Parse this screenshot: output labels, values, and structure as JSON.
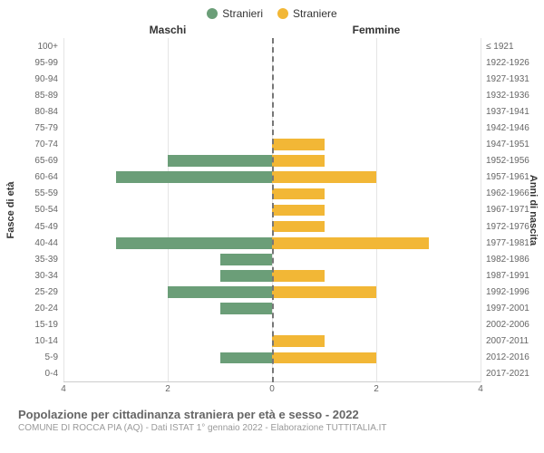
{
  "legend": {
    "series": [
      {
        "label": "Stranieri",
        "color": "#6b9e78"
      },
      {
        "label": "Straniere",
        "color": "#f2b736"
      }
    ]
  },
  "column_headers": {
    "left": "Maschi",
    "right": "Femmine"
  },
  "axis_titles": {
    "left": "Fasce di età",
    "right": "Anni di nascita"
  },
  "chart": {
    "type": "population-pyramid",
    "x_max": 4,
    "x_ticks": [
      4,
      2,
      0,
      2,
      4
    ],
    "grid_color": "#e5e5e5",
    "background_color": "#ffffff",
    "center_axis_color": "#777777",
    "male_color": "#6b9e78",
    "female_color": "#f2b736",
    "bar_height_pct": 70,
    "rows": [
      {
        "age": "100+",
        "birth": "≤ 1921",
        "m": 0,
        "f": 0
      },
      {
        "age": "95-99",
        "birth": "1922-1926",
        "m": 0,
        "f": 0
      },
      {
        "age": "90-94",
        "birth": "1927-1931",
        "m": 0,
        "f": 0
      },
      {
        "age": "85-89",
        "birth": "1932-1936",
        "m": 0,
        "f": 0
      },
      {
        "age": "80-84",
        "birth": "1937-1941",
        "m": 0,
        "f": 0
      },
      {
        "age": "75-79",
        "birth": "1942-1946",
        "m": 0,
        "f": 0
      },
      {
        "age": "70-74",
        "birth": "1947-1951",
        "m": 0,
        "f": 1
      },
      {
        "age": "65-69",
        "birth": "1952-1956",
        "m": 2,
        "f": 1
      },
      {
        "age": "60-64",
        "birth": "1957-1961",
        "m": 3,
        "f": 2
      },
      {
        "age": "55-59",
        "birth": "1962-1966",
        "m": 0,
        "f": 1
      },
      {
        "age": "50-54",
        "birth": "1967-1971",
        "m": 0,
        "f": 1
      },
      {
        "age": "45-49",
        "birth": "1972-1976",
        "m": 0,
        "f": 1
      },
      {
        "age": "40-44",
        "birth": "1977-1981",
        "m": 3,
        "f": 3
      },
      {
        "age": "35-39",
        "birth": "1982-1986",
        "m": 1,
        "f": 0
      },
      {
        "age": "30-34",
        "birth": "1987-1991",
        "m": 1,
        "f": 1
      },
      {
        "age": "25-29",
        "birth": "1992-1996",
        "m": 2,
        "f": 2
      },
      {
        "age": "20-24",
        "birth": "1997-2001",
        "m": 1,
        "f": 0
      },
      {
        "age": "15-19",
        "birth": "2002-2006",
        "m": 0,
        "f": 0
      },
      {
        "age": "10-14",
        "birth": "2007-2011",
        "m": 0,
        "f": 1
      },
      {
        "age": "5-9",
        "birth": "2012-2016",
        "m": 1,
        "f": 2
      },
      {
        "age": "0-4",
        "birth": "2017-2021",
        "m": 0,
        "f": 0
      }
    ]
  },
  "footer": {
    "title": "Popolazione per cittadinanza straniera per età e sesso - 2022",
    "subtitle": "COMUNE DI ROCCA PIA (AQ) - Dati ISTAT 1° gennaio 2022 - Elaborazione TUTTITALIA.IT"
  }
}
